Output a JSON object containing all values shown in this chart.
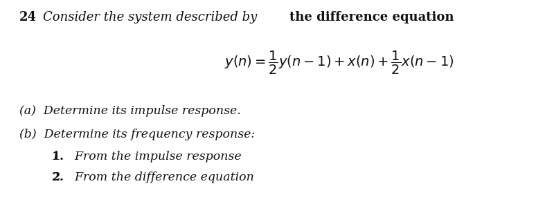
{
  "background_color": "#ffffff",
  "font_color": "#111111",
  "number": "24",
  "title_italic": "Consider the system described by ",
  "title_bold": "the difference equation",
  "equation": "$y(n) = \\dfrac{1}{2}y(n-1) + x(n) + \\dfrac{1}{2}x(n-1)$",
  "part_a": "(a)  Determine its impulse response.",
  "part_b": "(b)  Determine its frequency response:",
  "item1": "1.   From the impulse response",
  "item2": "2.   From the difference equation",
  "fontsize_title": 13,
  "fontsize_eq": 14,
  "fontsize_body": 12.5
}
